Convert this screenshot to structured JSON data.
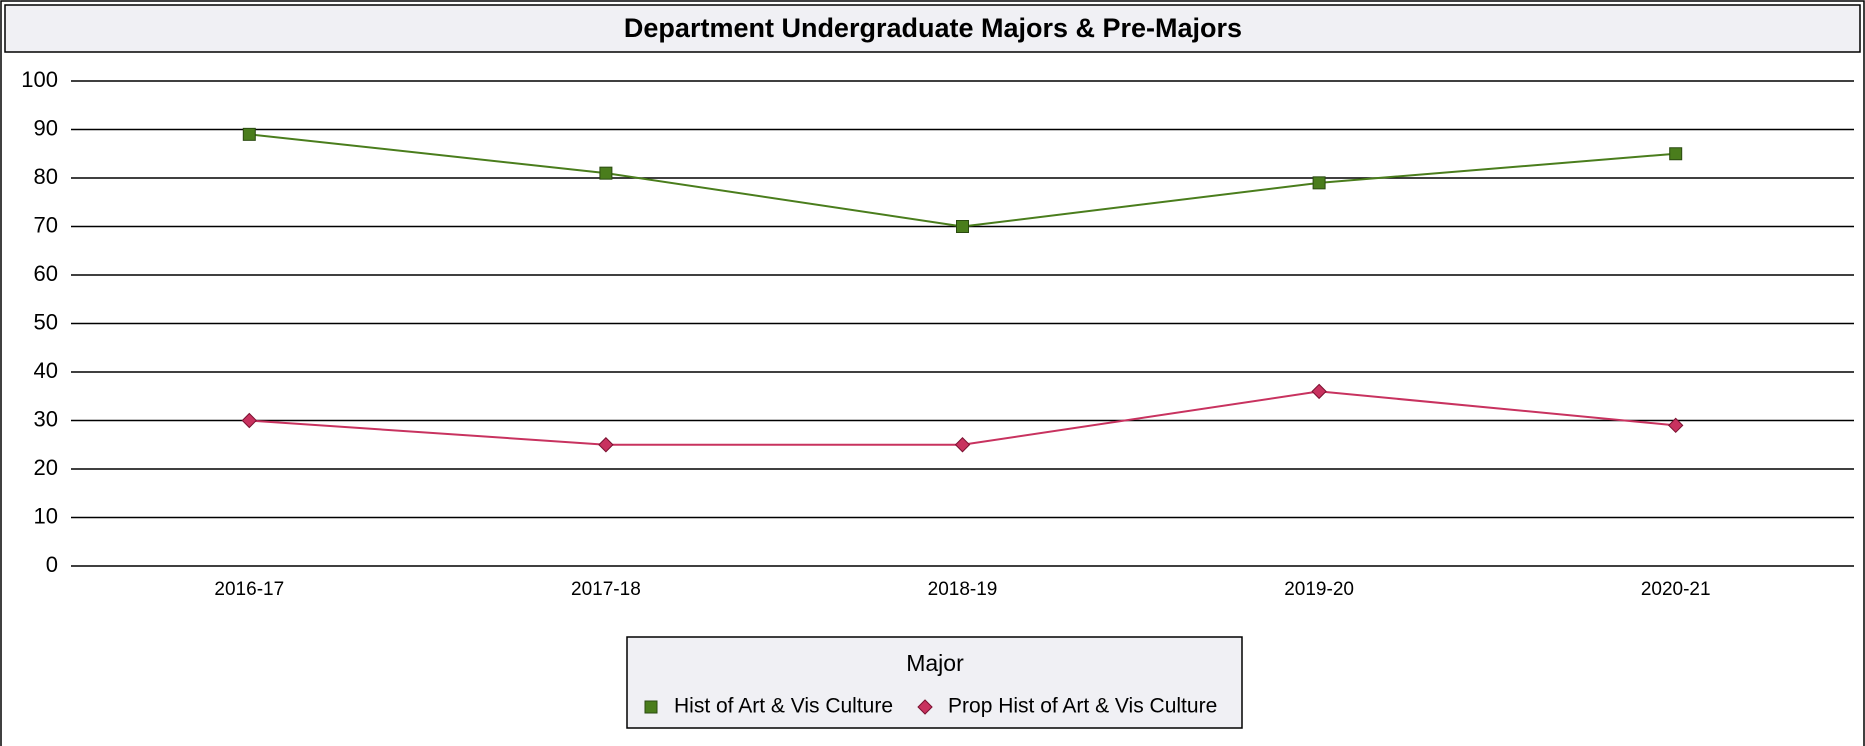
{
  "chart_data": {
    "type": "line",
    "title": "Department Undergraduate Majors & Pre-Majors",
    "categories": [
      "2016-17",
      "2017-18",
      "2018-19",
      "2019-20",
      "2020-21"
    ],
    "series": [
      {
        "name": "Hist of Art & Vis Culture",
        "color": "#4a7d1c",
        "marker": "square",
        "values": [
          89,
          81,
          70,
          79,
          85
        ]
      },
      {
        "name": "Prop Hist of Art & Vis Culture",
        "color": "#c8325f",
        "marker": "diamond",
        "values": [
          30,
          25,
          25,
          36,
          29
        ]
      }
    ],
    "ylim": [
      0,
      100
    ],
    "yticks": [
      0,
      10,
      20,
      30,
      40,
      50,
      60,
      70,
      80,
      90,
      100
    ],
    "grid": true,
    "legend_title": "Major",
    "legend_position": "bottom"
  }
}
